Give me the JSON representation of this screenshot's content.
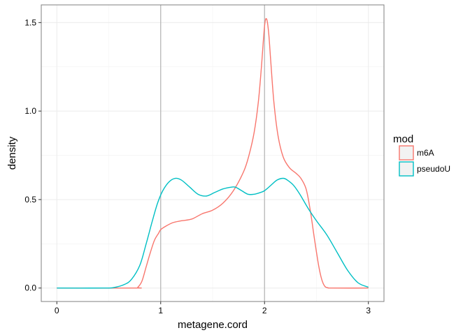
{
  "chart_data": {
    "type": "line",
    "subtype": "density",
    "xlabel": "metagene.cord",
    "ylabel": "density",
    "xlim": [
      -0.15,
      3.15
    ],
    "ylim": [
      -0.076,
      1.6
    ],
    "x_ticks": [
      0,
      1,
      2,
      3
    ],
    "x_tick_labels": [
      "0",
      "1",
      "2",
      "3"
    ],
    "y_ticks": [
      0.0,
      0.5,
      1.0,
      1.5
    ],
    "y_tick_labels": [
      "0.0",
      "0.5",
      "1.0",
      "1.5"
    ],
    "grid": true,
    "vlines": [
      1,
      2
    ],
    "vline_color": "#b3b3b3",
    "legend": {
      "title": "mod",
      "position": "right"
    },
    "series": [
      {
        "name": "m6A",
        "color": "#F8766D",
        "x": [
          0,
          0.75,
          0.78,
          0.82,
          0.86,
          0.9,
          0.94,
          0.98,
          1.0,
          1.05,
          1.12,
          1.2,
          1.3,
          1.4,
          1.5,
          1.6,
          1.7,
          1.8,
          1.85,
          1.9,
          1.94,
          1.97,
          2.0,
          2.02,
          2.04,
          2.06,
          2.09,
          2.13,
          2.18,
          2.24,
          2.3,
          2.35,
          2.4,
          2.44,
          2.48,
          2.52,
          2.55,
          2.58,
          2.61,
          2.65,
          3.0
        ],
        "y": [
          0.0,
          0.0,
          0.005,
          0.04,
          0.12,
          0.2,
          0.27,
          0.31,
          0.33,
          0.35,
          0.37,
          0.38,
          0.39,
          0.42,
          0.44,
          0.48,
          0.55,
          0.66,
          0.75,
          0.88,
          1.05,
          1.25,
          1.48,
          1.52,
          1.44,
          1.28,
          1.05,
          0.86,
          0.74,
          0.68,
          0.65,
          0.62,
          0.56,
          0.44,
          0.28,
          0.13,
          0.05,
          0.01,
          0.002,
          0.0,
          0.0
        ]
      },
      {
        "name": "pseudoU",
        "color": "#00BFC4",
        "x": [
          0,
          0.45,
          0.55,
          0.65,
          0.72,
          0.8,
          0.86,
          0.92,
          0.97,
          1.02,
          1.08,
          1.14,
          1.2,
          1.28,
          1.36,
          1.44,
          1.52,
          1.6,
          1.68,
          1.72,
          1.78,
          1.84,
          1.9,
          1.96,
          2.0,
          2.06,
          2.12,
          2.18,
          2.22,
          2.28,
          2.34,
          2.42,
          2.5,
          2.6,
          2.7,
          2.8,
          2.9,
          3.0
        ],
        "y": [
          0.0,
          0.0,
          0.003,
          0.02,
          0.05,
          0.13,
          0.25,
          0.38,
          0.48,
          0.55,
          0.6,
          0.62,
          0.61,
          0.57,
          0.53,
          0.52,
          0.54,
          0.56,
          0.57,
          0.57,
          0.55,
          0.53,
          0.53,
          0.54,
          0.55,
          0.58,
          0.61,
          0.62,
          0.61,
          0.58,
          0.53,
          0.45,
          0.38,
          0.3,
          0.2,
          0.1,
          0.03,
          0.005
        ]
      }
    ]
  }
}
